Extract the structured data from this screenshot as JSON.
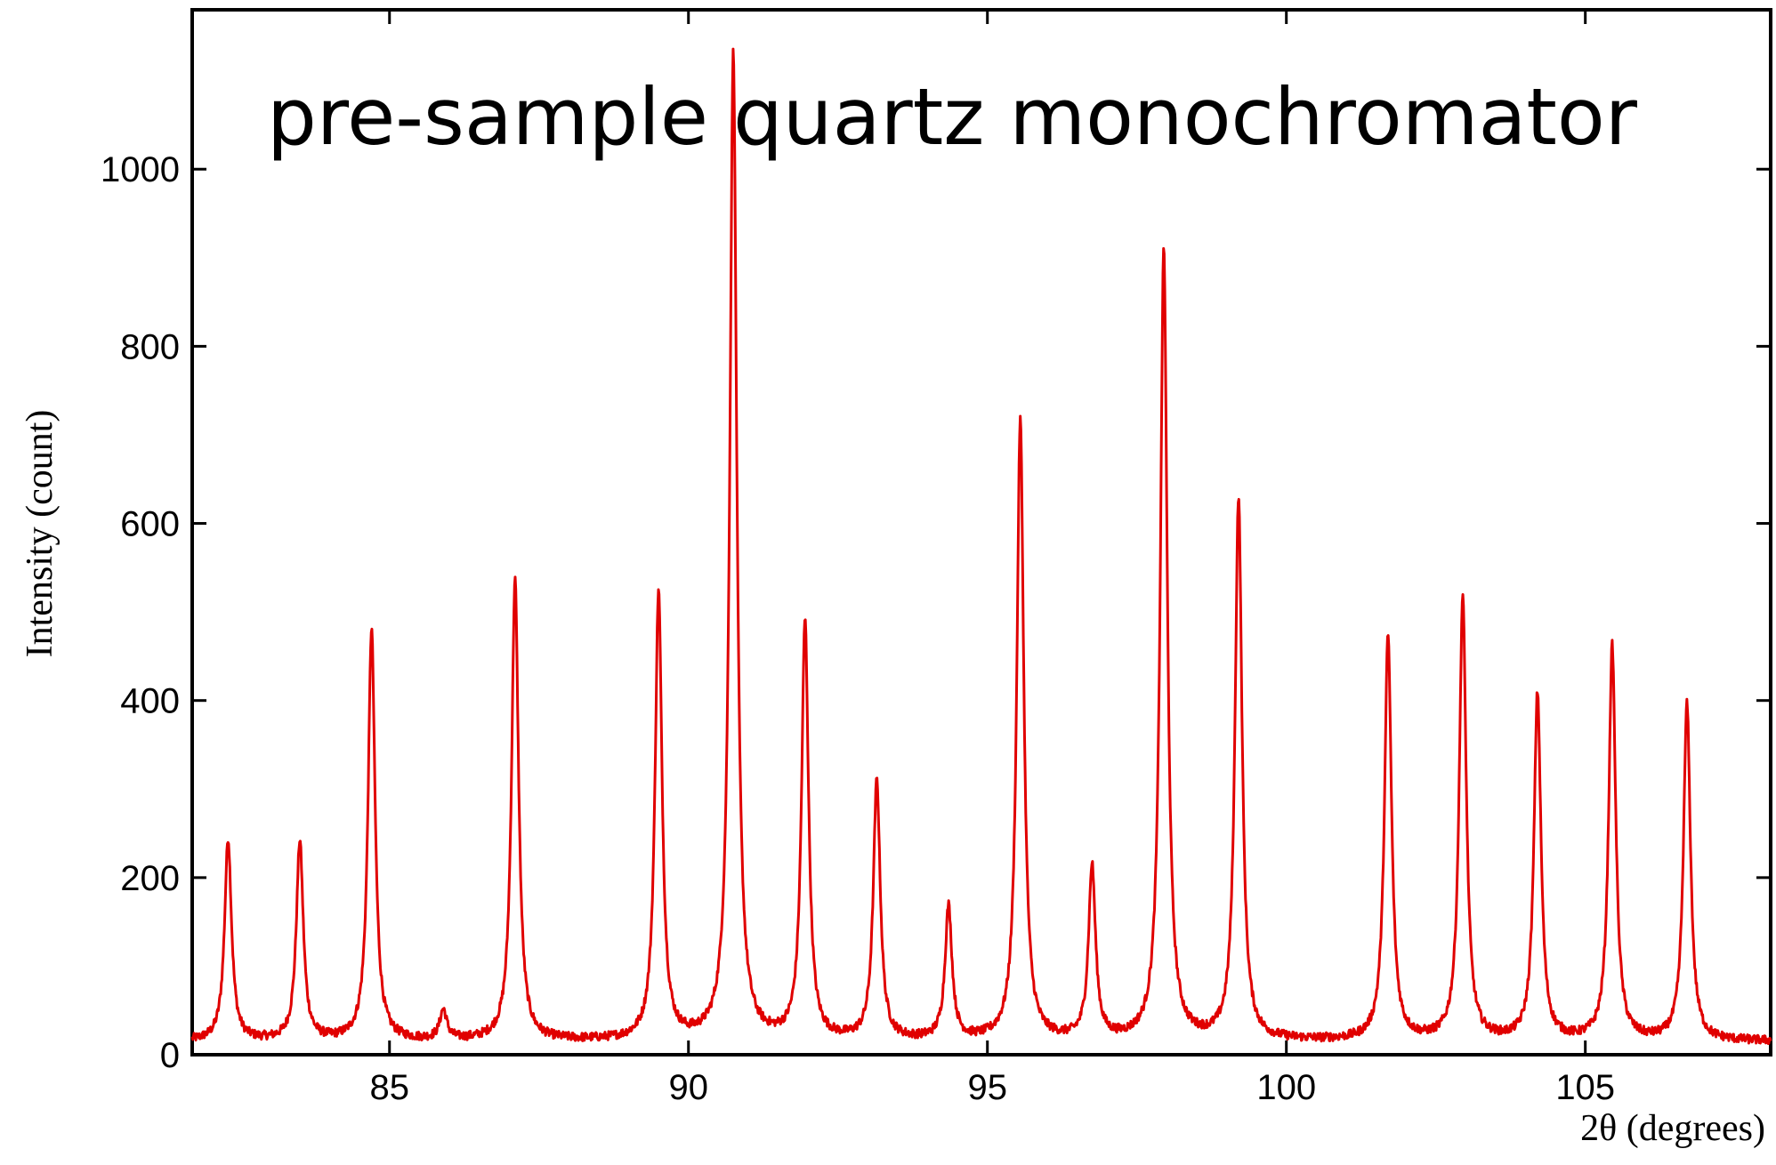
{
  "chart_data": {
    "type": "line",
    "title": "pre-sample quartz monochromator",
    "xlabel": "2θ (degrees)",
    "ylabel": "Intensity (count)",
    "xlim": [
      81.7,
      108.1
    ],
    "ylim": [
      0,
      1180
    ],
    "x_ticks": [
      85,
      90,
      95,
      100,
      105
    ],
    "y_ticks": [
      0,
      200,
      400,
      600,
      800,
      1000
    ],
    "baseline": 15,
    "line_color": "#e00000",
    "series": [
      {
        "peaks": [
          {
            "x": 82.3,
            "y": 243
          },
          {
            "x": 83.5,
            "y": 240
          },
          {
            "x": 84.7,
            "y": 480
          },
          {
            "x": 85.9,
            "y": 48
          },
          {
            "x": 87.1,
            "y": 535
          },
          {
            "x": 89.5,
            "y": 520
          },
          {
            "x": 90.75,
            "y": 1130
          },
          {
            "x": 91.95,
            "y": 487
          },
          {
            "x": 93.15,
            "y": 307
          },
          {
            "x": 94.35,
            "y": 165
          },
          {
            "x": 95.55,
            "y": 715
          },
          {
            "x": 96.75,
            "y": 210
          },
          {
            "x": 97.95,
            "y": 908
          },
          {
            "x": 99.2,
            "y": 627
          },
          {
            "x": 101.7,
            "y": 472
          },
          {
            "x": 102.95,
            "y": 515
          },
          {
            "x": 104.2,
            "y": 407
          },
          {
            "x": 105.45,
            "y": 460
          },
          {
            "x": 106.7,
            "y": 395
          }
        ]
      }
    ]
  }
}
